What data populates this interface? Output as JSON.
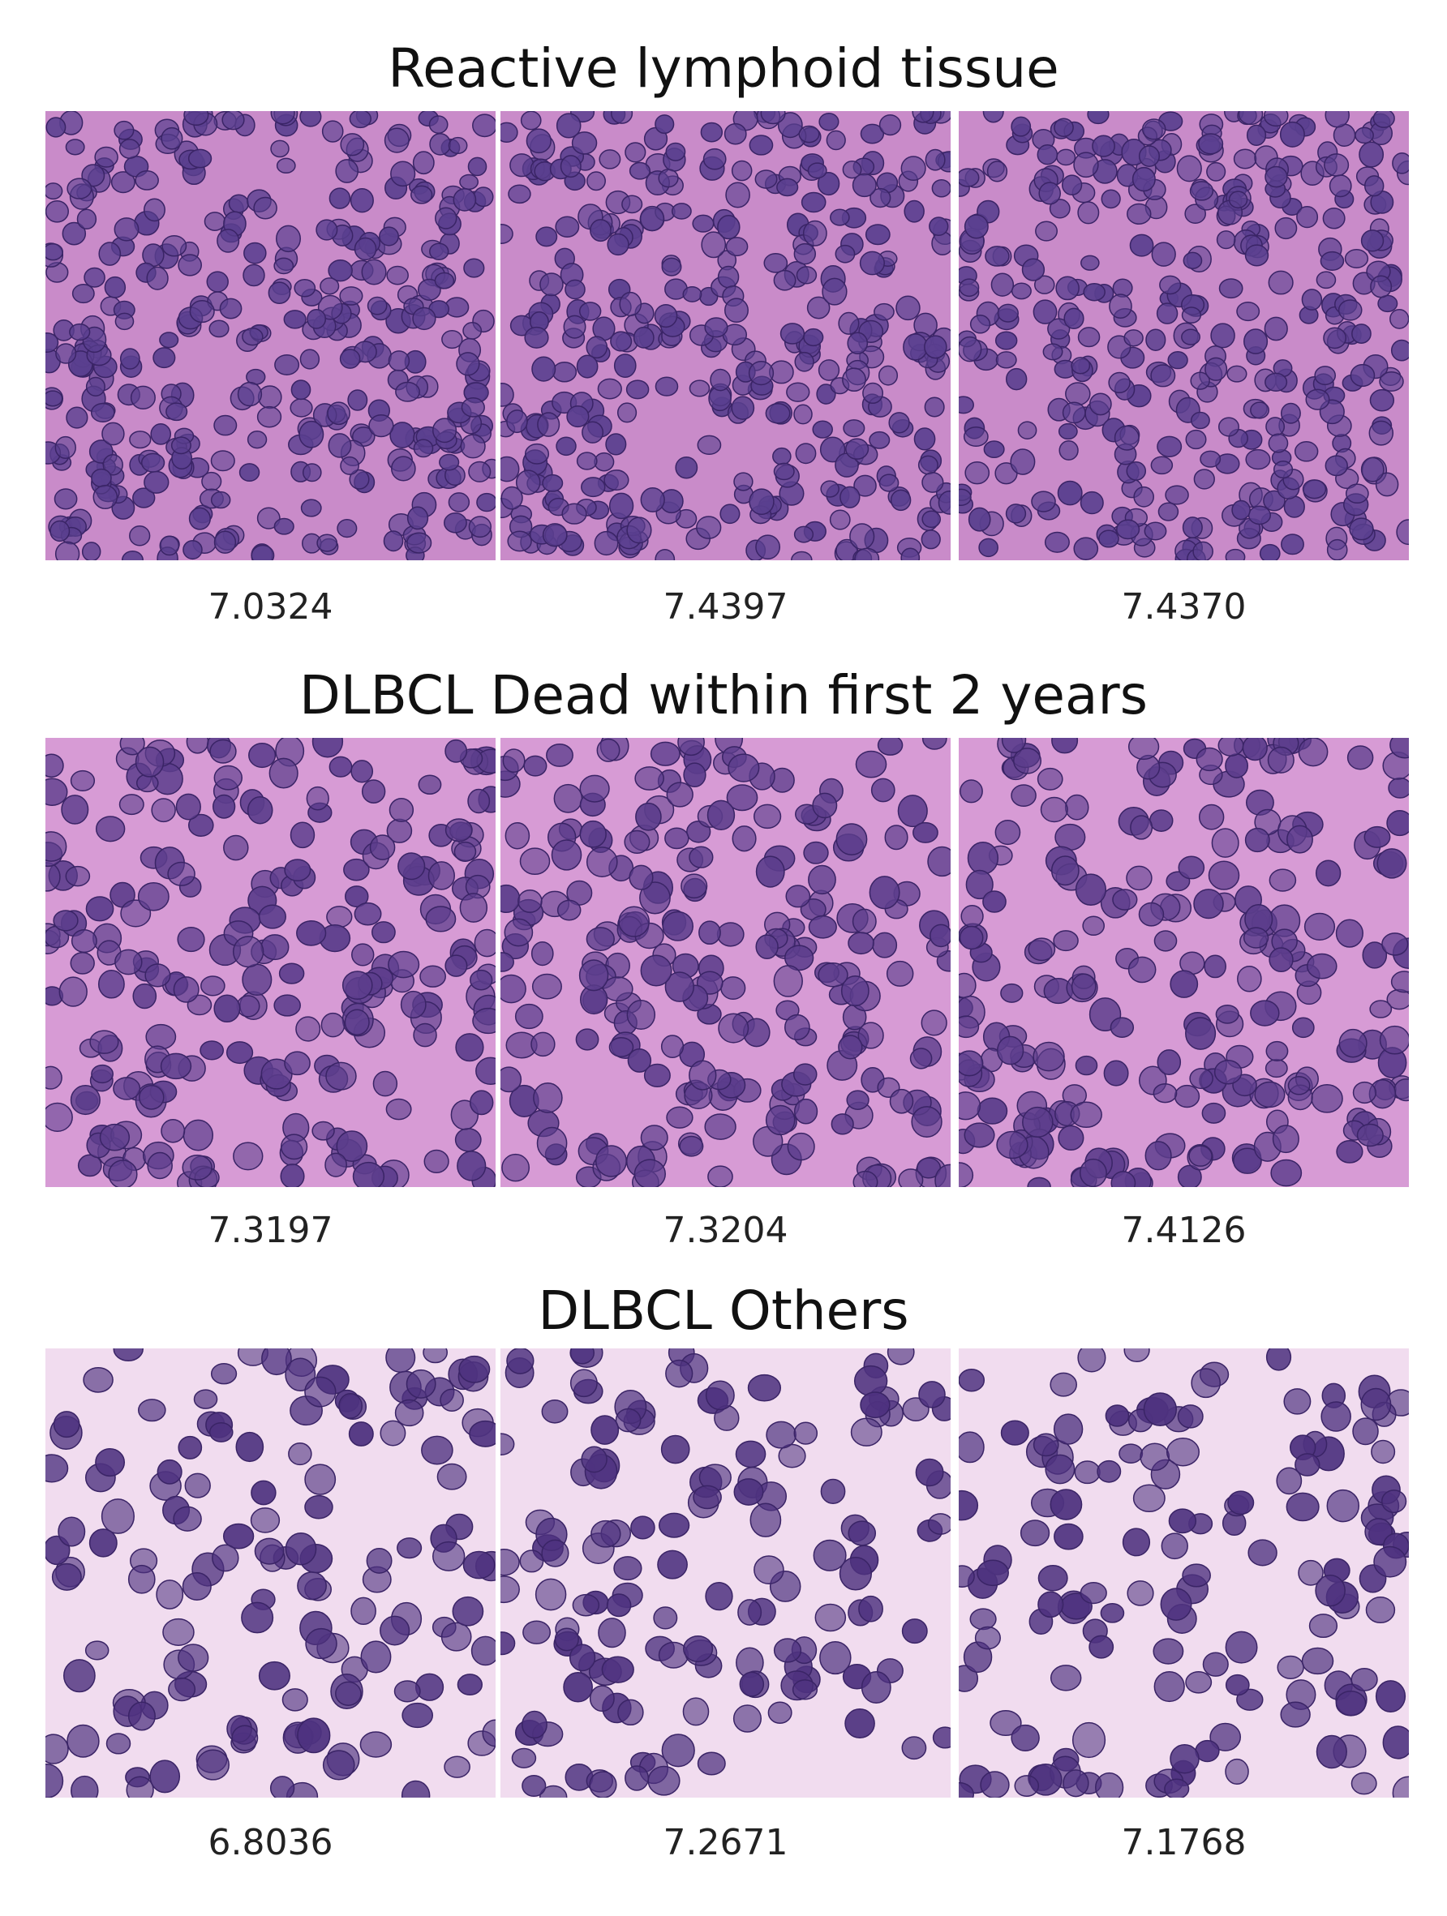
{
  "sections": [
    {
      "title": "Reactive lymphoid tissue",
      "scores": [
        "7.0324",
        "7.4397",
        "7.4370"
      ]
    },
    {
      "title": "DLBCL Dead within first 2 years",
      "scores": [
        "7.3197",
        "7.3204",
        "7.4126"
      ]
    },
    {
      "title": "DLBCL Others",
      "scores": [
        "6.8036",
        "7.2671",
        "7.1768"
      ]
    }
  ]
}
